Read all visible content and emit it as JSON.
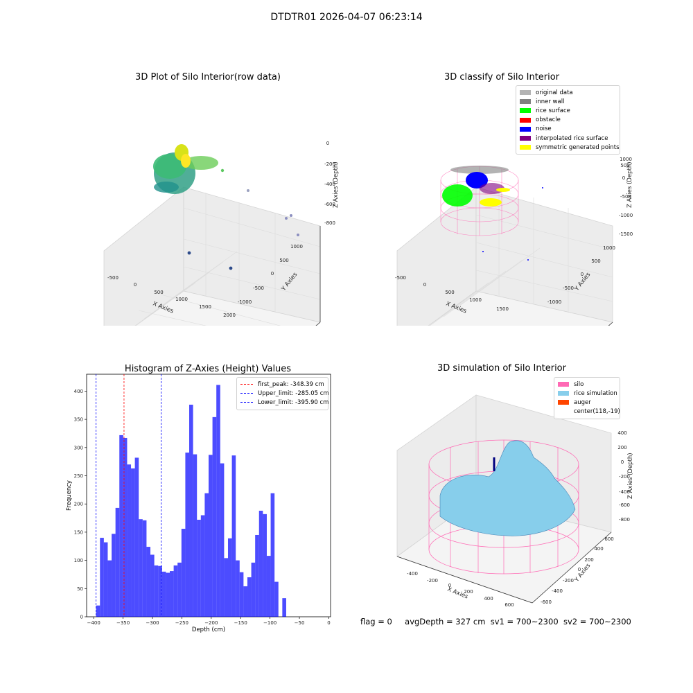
{
  "suptitle": "DTDTR01 2026-04-07 06:23:14",
  "panels": {
    "raw": {
      "title": "3D Plot of Silo Interior(row data)",
      "xlabel": "X Axies",
      "ylabel": "Y Axies",
      "zlabel": "Z Axies (Depth)",
      "xticks": [
        "-500",
        "0",
        "500",
        "1000",
        "1500",
        "2000"
      ],
      "yticks": [
        "1000",
        "500",
        "0",
        "-500",
        "-1000"
      ],
      "zticks": [
        "0",
        "-200",
        "-400",
        "-600",
        "-800"
      ]
    },
    "classify": {
      "title": "3D classify of Silo Interior",
      "xlabel": "X Axies",
      "ylabel": "Y Axies",
      "zlabel": "Z Axies (Depth)",
      "xticks": [
        "-500",
        "0",
        "500",
        "1000",
        "1500"
      ],
      "yticks": [
        "1000",
        "500",
        "0",
        "-500",
        "-1000"
      ],
      "zticks": [
        "1000",
        "500",
        "0",
        "-500",
        "-1000",
        "-1500"
      ],
      "legend": [
        {
          "label": "original data",
          "color": "#b3b3b3"
        },
        {
          "label": "inner wall",
          "color": "#808080"
        },
        {
          "label": "rice surface",
          "color": "#00ff00"
        },
        {
          "label": "obstacle",
          "color": "#ff0000"
        },
        {
          "label": "noise",
          "color": "#0000ff"
        },
        {
          "label": "interpolated rice surface",
          "color": "#800080"
        },
        {
          "label": "symmetric generated points",
          "color": "#ffff00"
        }
      ]
    },
    "simulation": {
      "title": "3D simulation of Silo Interior",
      "xlabel": "X Axies",
      "ylabel": "Y Axies",
      "zlabel": "Z Axies (Depth)",
      "xticks": [
        "-400",
        "-200",
        "0",
        "200",
        "400",
        "600"
      ],
      "yticks": [
        "600",
        "400",
        "200",
        "0",
        "-200",
        "-400",
        "-600"
      ],
      "zticks": [
        "400",
        "200",
        "0",
        "-200",
        "-400",
        "-600",
        "-800"
      ],
      "legend": [
        {
          "label": "silo",
          "color": "#ff69b4"
        },
        {
          "label": "rice simulation",
          "color": "#87ceeb"
        },
        {
          "label": "auger",
          "color": "#ff4500"
        },
        {
          "label": "center(118,-19)",
          "color": ""
        }
      ]
    }
  },
  "chart_data": {
    "type": "bar",
    "title": "Histogram of Z-Axies (Height) Values",
    "xlabel": "Depth (cm)",
    "ylabel": "Frequency",
    "xlim": [
      -412,
      3
    ],
    "ylim": [
      0,
      430
    ],
    "xticks": [
      -400,
      -350,
      -300,
      -250,
      -200,
      -150,
      -100,
      -50,
      0
    ],
    "yticks": [
      0,
      50,
      100,
      150,
      200,
      250,
      300,
      350,
      400
    ],
    "bar_color": "#0000ff",
    "bins_start": -395.9,
    "bin_width": 6.6,
    "values": [
      20,
      140,
      132,
      100,
      147,
      193,
      322,
      317,
      270,
      263,
      282,
      173,
      171,
      124,
      110,
      91,
      90,
      80,
      78,
      81,
      91,
      96,
      156,
      291,
      376,
      288,
      172,
      180,
      219,
      287,
      354,
      411,
      272,
      104,
      139,
      286,
      100,
      79,
      54,
      70,
      96,
      145,
      188,
      182,
      108,
      219,
      62,
      0,
      33
    ],
    "vlines": [
      {
        "label": "first_peak: -348.39 cm",
        "x": -348.39,
        "color": "#ff0000"
      },
      {
        "label": "Upper_limit: -285.05 cm",
        "x": -285.05,
        "color": "#0000ff"
      },
      {
        "label": "Lower_limit: -395.90 cm",
        "x": -395.9,
        "color": "#0000ff"
      }
    ]
  },
  "footer": {
    "flag": "flag = 0",
    "avg_depth": "avgDepth = 327 cm",
    "sv1": "sv1 = 700~2300",
    "sv2": "sv2 = 700~2300"
  }
}
